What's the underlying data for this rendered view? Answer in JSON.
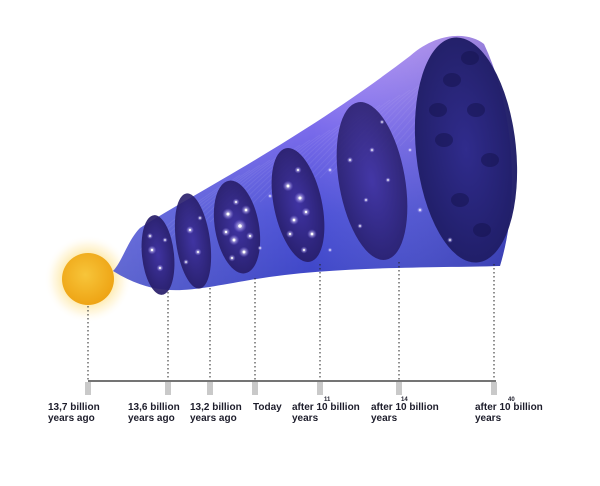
{
  "timeline": {
    "events": [
      {
        "line1": "13,7 billion",
        "line2": "years ago",
        "superscript": ""
      },
      {
        "line1": "13,6 billion",
        "line2": "years ago",
        "superscript": ""
      },
      {
        "line1": "13,2 billion",
        "line2": "years ago",
        "superscript": ""
      },
      {
        "line1": "Today",
        "line2": "",
        "superscript": ""
      },
      {
        "line1": "after 10 billion",
        "line2": "years",
        "superscript": "11"
      },
      {
        "line1": "after 10 billion",
        "line2": "years",
        "superscript": "14"
      },
      {
        "line1": "after 10 billion",
        "line2": "years",
        "superscript": "40"
      }
    ]
  },
  "colors": {
    "sun_core": "#f2b21c",
    "sun_glow": "#fde8a6",
    "cone_light": "#a98cf5",
    "cone_mid": "#5f5fe0",
    "cone_dark": "#3a3fc2",
    "slice_dark": "#2a1f6e",
    "axis_line": "#222222",
    "tick_marker": "#c9c9c9"
  }
}
